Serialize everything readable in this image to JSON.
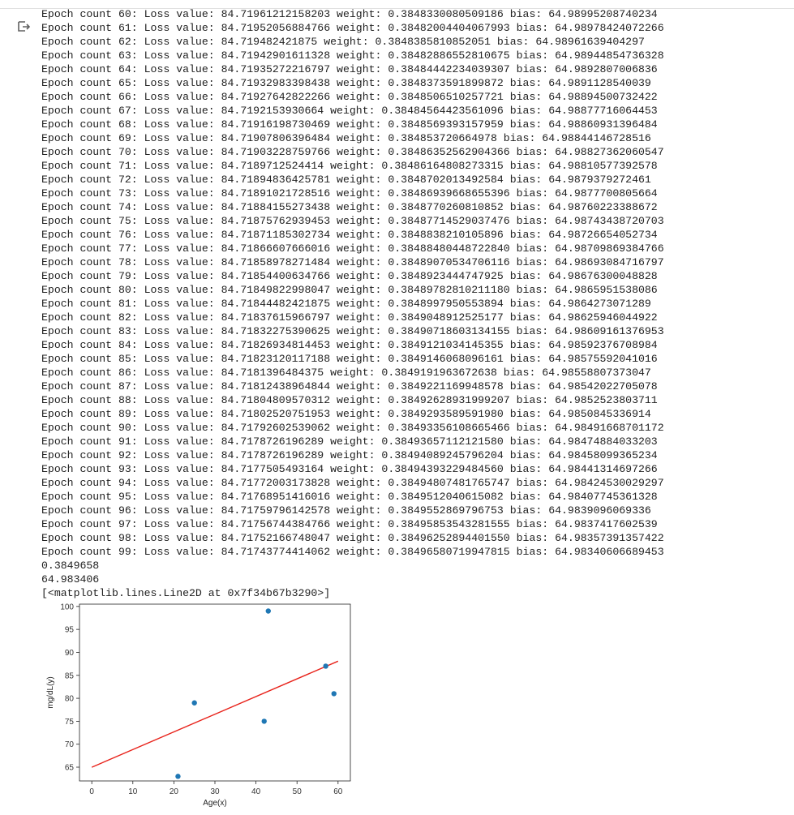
{
  "log_lines": [
    "Epoch count 60: Loss value: 84.71961212158203 weight: 0.3848330080509186 bias: 64.98995208740234",
    "Epoch count 61: Loss value: 84.71952056884766 weight: 0.38482004404067993 bias: 64.98978424072266",
    "Epoch count 62: Loss value: 84.719482421875 weight: 0.3848385810852051 bias: 64.98961639404297",
    "Epoch count 63: Loss value: 84.71942901611328 weight: 0.38482886552810675 bias: 64.98944854736328",
    "Epoch count 64: Loss value: 84.71935272216797 weight: 0.38484442234039307 bias: 64.9892807006836",
    "Epoch count 65: Loss value: 84.71932983398438 weight: 0.3848373591899872 bias: 64.9891128540039",
    "Epoch count 66: Loss value: 84.71927642822266 weight: 0.3848506510257721 bias: 64.98894500732422",
    "Epoch count 67: Loss value: 84.7192153930664 weight: 0.38484564423561096 bias: 64.98877716064453",
    "Epoch count 68: Loss value: 84.71916198730469 weight: 0.3848569393157959 bias: 64.98860931396484",
    "Epoch count 69: Loss value: 84.71907806396484 weight: 0.384853720664978 bias: 64.98844146728516",
    "Epoch count 70: Loss value: 84.71903228759766 weight: 0.38486352562904366 bias: 64.98827362060547",
    "Epoch count 71: Loss value: 84.7189712524414 weight: 0.38486164808273315 bias: 64.98810577392578",
    "Epoch count 72: Loss value: 84.71894836425781 weight: 0.3848702013492584 bias: 64.9879379272461",
    "Epoch count 73: Loss value: 84.71891021728516 weight: 0.38486939668655396 bias: 64.9877700805664",
    "Epoch count 74: Loss value: 84.71884155273438 weight: 0.3848770260810852 bias: 64.98760223388672",
    "Epoch count 75: Loss value: 84.71875762939453 weight: 0.38487714529037476 bias: 64.98743438720703",
    "Epoch count 76: Loss value: 84.71871185302734 weight: 0.3848838210105896 bias: 64.98726654052734",
    "Epoch count 77: Loss value: 84.71866607666016 weight: 0.38488480448722840 bias: 64.98709869384766",
    "Epoch count 78: Loss value: 84.71858978271484 weight: 0.38489070534706116 bias: 64.98693084716797",
    "Epoch count 79: Loss value: 84.71854400634766 weight: 0.3848923444747925 bias: 64.98676300048828",
    "Epoch count 80: Loss value: 84.71849822998047 weight: 0.38489782810211180 bias: 64.9865951538086",
    "Epoch count 81: Loss value: 84.71844482421875 weight: 0.3848997950553894 bias: 64.9864273071289",
    "Epoch count 82: Loss value: 84.71837615966797 weight: 0.3849048912525177 bias: 64.98625946044922",
    "Epoch count 83: Loss value: 84.71832275390625 weight: 0.38490718603134155 bias: 64.98609161376953",
    "Epoch count 84: Loss value: 84.71826934814453 weight: 0.3849121034145355 bias: 64.98592376708984",
    "Epoch count 85: Loss value: 84.71823120117188 weight: 0.3849146068096161 bias: 64.98575592041016",
    "Epoch count 86: Loss value: 84.7181396484375 weight: 0.3849191963672638 bias: 64.98558807373047",
    "Epoch count 87: Loss value: 84.71812438964844 weight: 0.3849221169948578 bias: 64.98542022705078",
    "Epoch count 88: Loss value: 84.71804809570312 weight: 0.38492628931999207 bias: 64.9852523803711",
    "Epoch count 89: Loss value: 84.71802520751953 weight: 0.3849293589591980 bias: 64.9850845336914",
    "Epoch count 90: Loss value: 84.71792602539062 weight: 0.38493356108665466 bias: 64.98491668701172",
    "Epoch count 91: Loss value: 84.7178726196289 weight: 0.38493657112121580 bias: 64.98474884033203",
    "Epoch count 92: Loss value: 84.7178726196289 weight: 0.38494089245796204 bias: 64.98458099365234",
    "Epoch count 93: Loss value: 84.7177505493164 weight: 0.38494393229484560 bias: 64.98441314697266",
    "Epoch count 94: Loss value: 84.71772003173828 weight: 0.38494807481765747 bias: 64.98424530029297",
    "Epoch count 95: Loss value: 84.71768951416016 weight: 0.3849512040615082 bias: 64.98407745361328",
    "Epoch count 96: Loss value: 84.71759796142578 weight: 0.3849552869796753 bias: 64.9839096069336",
    "Epoch count 97: Loss value: 84.71756744384766 weight: 0.38495853543281555 bias: 64.9837417602539",
    "Epoch count 98: Loss value: 84.71752166748047 weight: 0.38496252894401550 bias: 64.98357391357422",
    "Epoch count 99: Loss value: 84.71743774414062 weight: 0.38496580719947815 bias: 64.98340606689453"
  ],
  "final_weight": "0.3849658",
  "final_bias": "64.983406",
  "plot_repr": "[<matplotlib.lines.Line2D at 0x7f34b67b3290>]",
  "icons": {
    "output": "output-arrow-icon"
  },
  "chart_data": {
    "type": "scatter",
    "xlabel": "Age(x)",
    "ylabel": "mg/dL(y)",
    "xlim": [
      -3,
      63
    ],
    "ylim": [
      62,
      100.5
    ],
    "xticks": [
      0,
      10,
      20,
      30,
      40,
      50,
      60
    ],
    "yticks": [
      65,
      70,
      75,
      80,
      85,
      90,
      95,
      100
    ],
    "grid": false,
    "points": [
      {
        "x": 21,
        "y": 63
      },
      {
        "x": 25,
        "y": 79
      },
      {
        "x": 42,
        "y": 75
      },
      {
        "x": 43,
        "y": 99
      },
      {
        "x": 57,
        "y": 87
      },
      {
        "x": 59,
        "y": 81
      }
    ],
    "point_color": "#1f77b4",
    "fit_line": {
      "x": [
        0,
        60
      ],
      "y": [
        64.983406,
        88.081354
      ]
    },
    "line_color": "#e8231b"
  }
}
